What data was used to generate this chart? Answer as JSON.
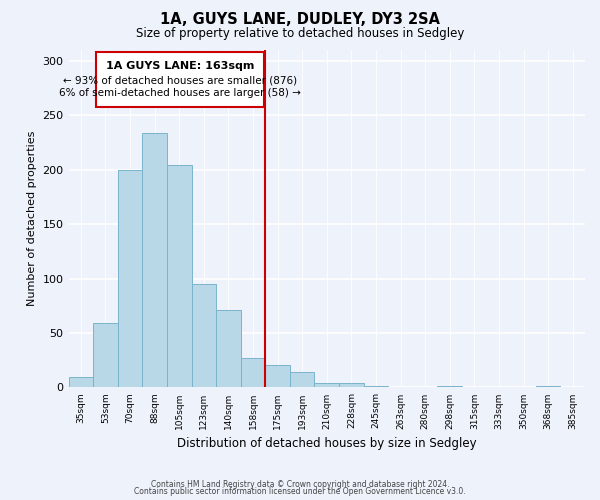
{
  "title": "1A, GUYS LANE, DUDLEY, DY3 2SA",
  "subtitle": "Size of property relative to detached houses in Sedgley",
  "xlabel": "Distribution of detached houses by size in Sedgley",
  "ylabel": "Number of detached properties",
  "categories": [
    "35sqm",
    "53sqm",
    "70sqm",
    "88sqm",
    "105sqm",
    "123sqm",
    "140sqm",
    "158sqm",
    "175sqm",
    "193sqm",
    "210sqm",
    "228sqm",
    "245sqm",
    "263sqm",
    "280sqm",
    "298sqm",
    "315sqm",
    "333sqm",
    "350sqm",
    "368sqm",
    "385sqm"
  ],
  "values": [
    10,
    59,
    200,
    234,
    204,
    95,
    71,
    27,
    21,
    14,
    4,
    4,
    1,
    0,
    0,
    1,
    0,
    0,
    0,
    1,
    0
  ],
  "bar_color": "#b8d8e8",
  "bar_edge_color": "#7ab4cc",
  "vline_x": 7.5,
  "vline_color": "#cc0000",
  "annotation_title": "1A GUYS LANE: 163sqm",
  "annotation_line1": "← 93% of detached houses are smaller (876)",
  "annotation_line2": "6% of semi-detached houses are larger (58) →",
  "annotation_box_color": "#cc0000",
  "ylim": [
    0,
    310
  ],
  "yticks": [
    0,
    50,
    100,
    150,
    200,
    250,
    300
  ],
  "footer1": "Contains HM Land Registry data © Crown copyright and database right 2024.",
  "footer2": "Contains public sector information licensed under the Open Government Licence v3.0.",
  "bg_color": "#eef2fb",
  "grid_color": "#ffffff"
}
